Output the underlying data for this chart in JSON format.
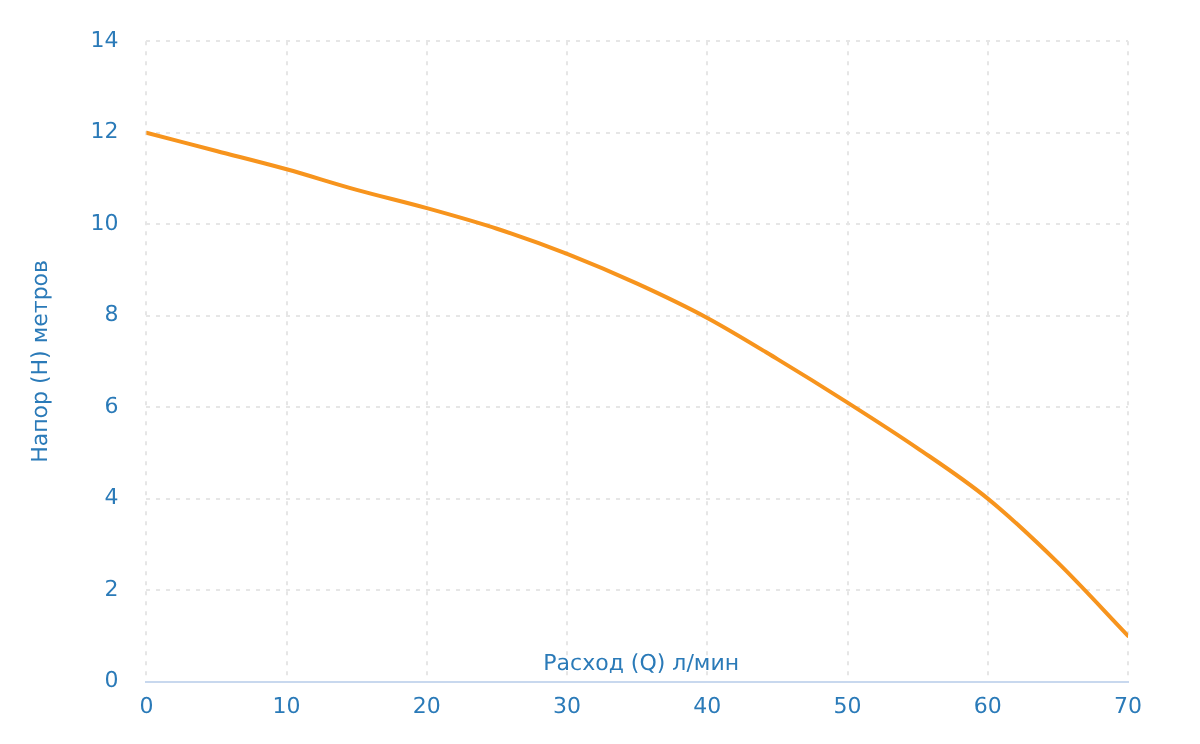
{
  "chart_data": {
    "type": "line",
    "xlabel": "Расход (Q) л/мин",
    "ylabel": "Напор (H) метров",
    "x": [
      0,
      5,
      10,
      15,
      20,
      25,
      30,
      35,
      40,
      45,
      50,
      55,
      60,
      65,
      70
    ],
    "series": [
      {
        "color": "#f7941d",
        "values": [
          12,
          11.6,
          11.2,
          10.75,
          10.35,
          9.9,
          9.35,
          8.7,
          7.95,
          7.05,
          6.1,
          5.1,
          4.0,
          2.6,
          1.0
        ]
      }
    ],
    "xlim": [
      0,
      70
    ],
    "xticks": [
      0,
      10,
      20,
      30,
      40,
      50,
      60,
      70
    ],
    "ylim": [
      0,
      14
    ],
    "yticks": [
      0,
      2,
      4,
      6,
      8,
      10,
      12,
      14
    ],
    "grid": true,
    "legend": false,
    "marker": "none",
    "line_style": "solid"
  }
}
